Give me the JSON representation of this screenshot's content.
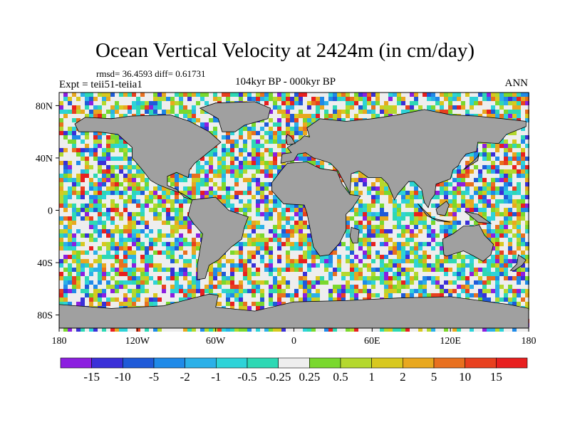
{
  "chart_data": {
    "type": "heatmap",
    "title": "Ocean Vertical Velocity at 2424m (in cm/day)",
    "stats_text": "rmsd= 36.4593 diff= 0.61731",
    "experiment_text": "Expt = teii51-teiia1",
    "period_text": "104kyr BP - 000kyr BP",
    "season_text": "ANN",
    "x_ticks": [
      "180",
      "120W",
      "60W",
      "0",
      "60E",
      "120E",
      "180"
    ],
    "x_tick_values": [
      -180,
      -120,
      -60,
      0,
      60,
      120,
      180
    ],
    "y_ticks": [
      "80N",
      "40N",
      "0",
      "40S",
      "80S"
    ],
    "y_tick_values": [
      80,
      40,
      0,
      -40,
      -80
    ],
    "xlim": [
      -180,
      180
    ],
    "ylim": [
      -90,
      90
    ],
    "land_color": "#a0a0a0",
    "colorbar": {
      "labels": [
        "-15",
        "-10",
        "-5",
        "-2",
        "-1",
        "-0.5",
        "-0.25",
        "0.25",
        "0.5",
        "1",
        "2",
        "5",
        "10",
        "15"
      ],
      "colors": [
        "#8c1fe0",
        "#3a2fd8",
        "#1f5ad8",
        "#1f8ae8",
        "#2bb0e8",
        "#2ed3d8",
        "#2ed8b4",
        "#eeeeee",
        "#7ad82e",
        "#b4d82e",
        "#d8c81f",
        "#e8a81f",
        "#e8701f",
        "#e8401f",
        "#e81f1f"
      ]
    }
  }
}
